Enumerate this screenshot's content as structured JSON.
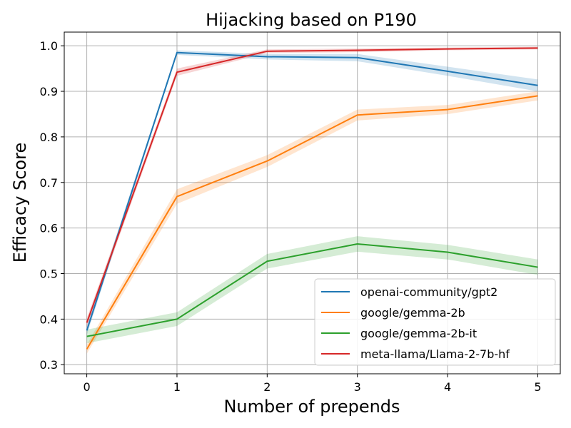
{
  "chart_data": {
    "type": "line",
    "title": "Hijacking based on P190",
    "xlabel": "Number of prepends",
    "ylabel": "Efficacy Score",
    "x": [
      0,
      1,
      2,
      3,
      4,
      5
    ],
    "xlim": [
      -0.25,
      5.25
    ],
    "ylim": [
      0.28,
      1.03
    ],
    "xticks": [
      0,
      1,
      2,
      3,
      4,
      5
    ],
    "yticks": [
      0.3,
      0.4,
      0.5,
      0.6,
      0.7,
      0.8,
      0.9,
      1.0
    ],
    "ytick_labels": [
      "0.3",
      "0.4",
      "0.5",
      "0.6",
      "0.7",
      "0.8",
      "0.9",
      "1.0"
    ],
    "grid": true,
    "legend_position": "lower-right",
    "series": [
      {
        "name": "openai-community/gpt2",
        "color": "#1f77b4",
        "values": [
          0.375,
          0.985,
          0.976,
          0.974,
          0.944,
          0.913
        ],
        "lower": [
          0.365,
          0.98,
          0.97,
          0.966,
          0.934,
          0.9
        ],
        "upper": [
          0.385,
          0.99,
          0.982,
          0.982,
          0.954,
          0.926
        ]
      },
      {
        "name": "google/gemma-2b",
        "color": "#ff7f0e",
        "values": [
          0.334,
          0.669,
          0.747,
          0.848,
          0.86,
          0.89
        ],
        "lower": [
          0.324,
          0.653,
          0.734,
          0.836,
          0.85,
          0.88
        ],
        "upper": [
          0.344,
          0.685,
          0.76,
          0.86,
          0.87,
          0.9
        ]
      },
      {
        "name": "google/gemma-2b-it",
        "color": "#2ca02c",
        "values": [
          0.362,
          0.4,
          0.527,
          0.565,
          0.547,
          0.514
        ],
        "lower": [
          0.347,
          0.385,
          0.511,
          0.548,
          0.531,
          0.497
        ],
        "upper": [
          0.377,
          0.415,
          0.543,
          0.582,
          0.563,
          0.531
        ]
      },
      {
        "name": "meta-llama/Llama-2-7b-hf",
        "color": "#d62728",
        "values": [
          0.392,
          0.942,
          0.988,
          0.99,
          0.993,
          0.995
        ],
        "lower": [
          0.382,
          0.934,
          0.984,
          0.986,
          0.99,
          0.992
        ],
        "upper": [
          0.402,
          0.95,
          0.992,
          0.994,
          0.996,
          0.998
        ]
      }
    ]
  }
}
